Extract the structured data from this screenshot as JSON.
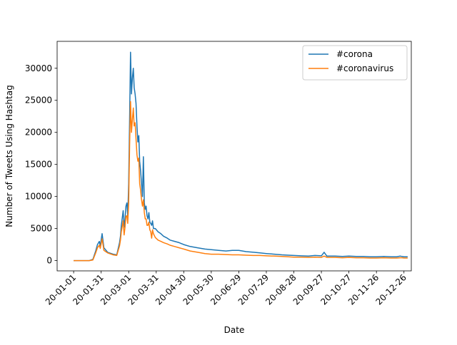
{
  "chart_data": {
    "type": "line",
    "title": "",
    "xlabel": "Date",
    "ylabel": "Number of Tweets Using Hashtag",
    "xlim": [
      "2019-12-14",
      "2021-01-03"
    ],
    "ylim": [
      -1600,
      34200
    ],
    "yticks": [
      0,
      5000,
      10000,
      15000,
      20000,
      25000,
      30000
    ],
    "xticks": [
      "20-01-01",
      "20-01-31",
      "20-03-01",
      "20-03-31",
      "20-04-30",
      "20-05-30",
      "20-06-29",
      "20-07-29",
      "20-08-28",
      "20-09-27",
      "20-10-27",
      "20-11-26",
      "20-12-26"
    ],
    "grid": false,
    "legend_position": "upper right",
    "x": [
      "2020-01-01",
      "2020-01-10",
      "2020-01-18",
      "2020-01-22",
      "2020-01-25",
      "2020-01-27",
      "2020-01-29",
      "2020-01-30",
      "2020-02-01",
      "2020-02-03",
      "2020-02-07",
      "2020-02-13",
      "2020-02-17",
      "2020-02-20",
      "2020-02-21",
      "2020-02-22",
      "2020-02-24",
      "2020-02-25",
      "2020-02-26",
      "2020-02-27",
      "2020-02-28",
      "2020-02-29",
      "2020-03-01",
      "2020-03-02",
      "2020-03-03",
      "2020-03-04",
      "2020-03-05",
      "2020-03-06",
      "2020-03-07",
      "2020-03-08",
      "2020-03-09",
      "2020-03-10",
      "2020-03-11",
      "2020-03-12",
      "2020-03-13",
      "2020-03-14",
      "2020-03-15",
      "2020-03-16",
      "2020-03-17",
      "2020-03-18",
      "2020-03-19",
      "2020-03-20",
      "2020-03-21",
      "2020-03-22",
      "2020-03-23",
      "2020-03-24",
      "2020-03-25",
      "2020-03-26",
      "2020-03-27",
      "2020-03-28",
      "2020-03-30",
      "2020-04-02",
      "2020-04-05",
      "2020-04-08",
      "2020-04-12",
      "2020-04-15",
      "2020-04-20",
      "2020-04-25",
      "2020-04-30",
      "2020-05-07",
      "2020-05-15",
      "2020-05-23",
      "2020-05-30",
      "2020-06-07",
      "2020-06-15",
      "2020-06-22",
      "2020-06-29",
      "2020-07-07",
      "2020-07-15",
      "2020-07-22",
      "2020-07-29",
      "2020-08-07",
      "2020-08-15",
      "2020-08-22",
      "2020-08-28",
      "2020-09-05",
      "2020-09-13",
      "2020-09-20",
      "2020-09-27",
      "2020-09-30",
      "2020-10-03",
      "2020-10-12",
      "2020-10-20",
      "2020-10-27",
      "2020-11-04",
      "2020-11-12",
      "2020-11-19",
      "2020-11-26",
      "2020-12-04",
      "2020-12-12",
      "2020-12-18",
      "2020-12-22",
      "2020-12-24",
      "2020-12-26",
      "2020-12-30"
    ],
    "series": [
      {
        "name": "#corona",
        "color": "#1f77b4",
        "values": [
          0,
          0,
          0,
          200,
          1500,
          2500,
          3000,
          2300,
          4200,
          2000,
          1300,
          1000,
          900,
          2800,
          3800,
          5500,
          7800,
          5200,
          6500,
          8500,
          9000,
          7000,
          12000,
          22000,
          32500,
          26000,
          28500,
          30000,
          27000,
          26000,
          24500,
          21000,
          18500,
          19500,
          15500,
          14000,
          12000,
          10000,
          16200,
          9000,
          8000,
          8500,
          7000,
          6500,
          7500,
          6000,
          5800,
          5500,
          6200,
          5000,
          5000,
          4500,
          4200,
          3800,
          3500,
          3200,
          3000,
          2800,
          2500,
          2200,
          2000,
          1800,
          1700,
          1600,
          1500,
          1600,
          1600,
          1400,
          1300,
          1200,
          1100,
          1000,
          900,
          850,
          800,
          750,
          700,
          800,
          750,
          1300,
          700,
          700,
          650,
          700,
          650,
          650,
          600,
          600,
          650,
          600,
          600,
          700,
          650,
          600,
          600
        ]
      },
      {
        "name": "#coronavirus",
        "color": "#ff7f0e",
        "values": [
          0,
          0,
          0,
          100,
          1200,
          2000,
          2400,
          1900,
          3400,
          1600,
          1200,
          900,
          800,
          2300,
          3200,
          4500,
          6200,
          4000,
          5200,
          6900,
          7000,
          5800,
          9000,
          18000,
          24800,
          20000,
          22000,
          23800,
          21000,
          21500,
          19000,
          16500,
          15500,
          16000,
          12000,
          11000,
          9500,
          8500,
          9500,
          7500,
          6500,
          6500,
          5500,
          5500,
          6000,
          4800,
          4500,
          3500,
          4800,
          4200,
          3600,
          3200,
          3000,
          2800,
          2600,
          2400,
          2200,
          2000,
          1800,
          1500,
          1300,
          1100,
          1000,
          1000,
          950,
          900,
          900,
          850,
          800,
          800,
          750,
          700,
          650,
          600,
          550,
          550,
          500,
          550,
          500,
          700,
          500,
          500,
          450,
          500,
          450,
          450,
          400,
          400,
          450,
          400,
          400,
          450,
          450,
          400,
          400
        ]
      }
    ]
  }
}
